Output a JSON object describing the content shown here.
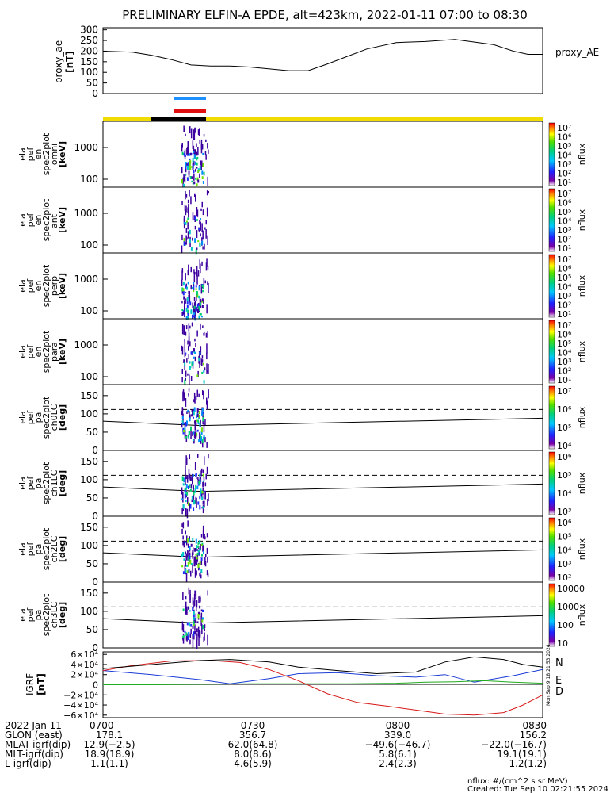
{
  "title": "PRELIMINARY ELFIN-A EPDE, alt=423km, 2022-01-11 07:00 to 08:30",
  "colors": {
    "proxy_line": "#000000",
    "bar_blue": "#1e90ff",
    "bar_red": "#e01010",
    "status_yellow": "#f0dc00",
    "status_black": "#000000",
    "igrf_N": "#1a3cd6",
    "igrf_E": "#1faa1f",
    "igrf_D": "#d61a1a",
    "igrf_total": "#000000"
  },
  "panels": {
    "proxy": {
      "ylabel": [
        "proxy_ae",
        "[nT]"
      ],
      "legend": "proxy_AE",
      "ticks": [
        "300",
        "250",
        "200",
        "150",
        "100",
        "50",
        "0"
      ]
    },
    "energy_panels": [
      {
        "ylabel": [
          "ela",
          "pef",
          "en",
          "spec2plot",
          "omni",
          "[keV]"
        ],
        "ticks": [
          "1000",
          "100"
        ],
        "zlabel": "nflux",
        "zticks": [
          "10⁷",
          "10⁶",
          "10⁵",
          "10⁴",
          "10³",
          "10²",
          "10¹"
        ]
      },
      {
        "ylabel": [
          "ela",
          "pef",
          "en",
          "spec2plot",
          "anti",
          "[keV]"
        ],
        "ticks": [
          "1000",
          "100"
        ],
        "zlabel": "nflux",
        "zticks": [
          "10⁷",
          "10⁶",
          "10⁵",
          "10⁴",
          "10³",
          "10²",
          "10¹"
        ]
      },
      {
        "ylabel": [
          "ela",
          "pef",
          "en",
          "spec2plot",
          "perp",
          "[keV]"
        ],
        "ticks": [
          "1000",
          "100"
        ],
        "zlabel": "nflux",
        "zticks": [
          "10⁷",
          "10⁶",
          "10⁵",
          "10⁴",
          "10³",
          "10²",
          "10¹"
        ]
      },
      {
        "ylabel": [
          "ela",
          "pef",
          "en",
          "spec2plot",
          "para",
          "[keV]"
        ],
        "ticks": [
          "1000",
          "100"
        ],
        "zlabel": "nflux",
        "zticks": [
          "10⁷",
          "10⁶",
          "10⁵",
          "10⁴",
          "10³",
          "10²",
          "10¹"
        ]
      }
    ],
    "pa_panels": [
      {
        "ylabel": [
          "ela",
          "pef",
          "pa",
          "spec2plot",
          "ch0LC",
          "[deg]"
        ],
        "ticks": [
          "150",
          "100",
          "50",
          "0"
        ],
        "zlabel": "nflux",
        "zticks": [
          "10⁷",
          "10⁶",
          "10⁵",
          "10⁴"
        ]
      },
      {
        "ylabel": [
          "ela",
          "pef",
          "pa",
          "spec2plot",
          "ch1LC",
          "[deg]"
        ],
        "ticks": [
          "150",
          "100",
          "50",
          "0"
        ],
        "zlabel": "nflux",
        "zticks": [
          "10⁶",
          "10⁵",
          "10⁴",
          "10³"
        ]
      },
      {
        "ylabel": [
          "ela",
          "pef",
          "pa",
          "spec2plot",
          "ch2LC",
          "[deg]"
        ],
        "ticks": [
          "150",
          "100",
          "50",
          "0"
        ],
        "zlabel": "nflux",
        "zticks": [
          "10⁶",
          "10⁵",
          "10⁴",
          "10³",
          "10²"
        ]
      },
      {
        "ylabel": [
          "ela",
          "pef",
          "pa",
          "spec2plot",
          "ch3LC",
          "[deg]"
        ],
        "ticks": [
          "150",
          "100",
          "50",
          "0"
        ],
        "zlabel": "nflux",
        "zticks": [
          "10000",
          "1000",
          "100",
          "10"
        ]
      }
    ],
    "igrf": {
      "ylabel": [
        "IGRF",
        "[nT]"
      ],
      "ticks": [
        "6×10⁴",
        "4×10⁴",
        "2×10⁴",
        "0",
        "−2×10⁴",
        "−4×10⁴",
        "−6×10⁴"
      ],
      "legend": [
        "N",
        "E",
        "D"
      ],
      "side_stamp": "Mon Sep 9 18:21:53 2024"
    }
  },
  "footer": {
    "rows": [
      {
        "label": "2022 Jan 11",
        "values": [
          "0700",
          "0730",
          "0800",
          "0830"
        ]
      },
      {
        "label": "GLON (east)",
        "values": [
          "178.1",
          "356.7",
          "339.0",
          "156.2"
        ]
      },
      {
        "label": "MLAT-igrf(dip)",
        "values": [
          "12.9(−2.5)",
          "62.0(64.8)",
          "−49.6(−46.7)",
          "−22.0(−16.7)"
        ]
      },
      {
        "label": "MLT-igrf(dip)",
        "values": [
          "18.9(18.9)",
          "8.0(8.6)",
          "5.8(6.1)",
          "19.1(19.1)"
        ]
      },
      {
        "label": "L-igrf(dip)",
        "values": [
          "1.1(1.1)",
          "4.6(5.9)",
          "2.4(2.3)",
          "1.2(1.2)"
        ]
      }
    ],
    "units_note": "nflux: #/(cm^2 s sr MeV)",
    "created": "Created: Tue Sep 10 02:21:55 2024"
  },
  "chart_data": [
    {
      "type": "line",
      "name": "proxy_AE",
      "x_minutes": [
        0,
        6,
        10,
        14,
        18,
        22,
        26,
        30,
        38,
        42,
        46,
        50,
        54,
        60,
        66,
        72,
        80,
        84,
        87,
        90
      ],
      "y": [
        200,
        195,
        180,
        160,
        135,
        130,
        130,
        125,
        108,
        108,
        140,
        175,
        210,
        240,
        245,
        255,
        230,
        200,
        185,
        185
      ],
      "ylim": [
        0,
        310
      ]
    },
    {
      "type": "line",
      "title": "IGRF",
      "xlim_minutes": [
        0,
        90
      ],
      "ylim": [
        -65000,
        65000
      ],
      "series": [
        {
          "name": "N",
          "x": [
            0,
            10,
            20,
            26,
            34,
            40,
            48,
            56,
            64,
            70,
            76,
            84,
            90
          ],
          "values": [
            28000,
            20000,
            10000,
            2000,
            12000,
            22000,
            24000,
            18000,
            15000,
            20000,
            5000,
            18000,
            30000
          ]
        },
        {
          "name": "E",
          "x": [
            0,
            10,
            20,
            30,
            40,
            50,
            60,
            66,
            72,
            78,
            84,
            90
          ],
          "values": [
            0,
            0,
            1000,
            2000,
            2000,
            2000,
            3000,
            5000,
            6000,
            8000,
            5000,
            3000
          ]
        },
        {
          "name": "D",
          "x": [
            0,
            6,
            14,
            22,
            28,
            34,
            40,
            46,
            52,
            58,
            64,
            70,
            76,
            82,
            86,
            90
          ],
          "values": [
            28000,
            38000,
            47000,
            48000,
            44000,
            30000,
            8000,
            -18000,
            -35000,
            -42000,
            -50000,
            -58000,
            -60000,
            -55000,
            -40000,
            -20000
          ]
        },
        {
          "x": [
            0,
            10,
            20,
            26,
            34,
            40,
            48,
            56,
            64,
            70,
            76,
            82,
            86,
            90
          ],
          "values": [
            32000,
            40000,
            48000,
            50000,
            45000,
            35000,
            28000,
            22000,
            25000,
            45000,
            55000,
            50000,
            40000,
            35000
          ]
        }
      ]
    }
  ]
}
